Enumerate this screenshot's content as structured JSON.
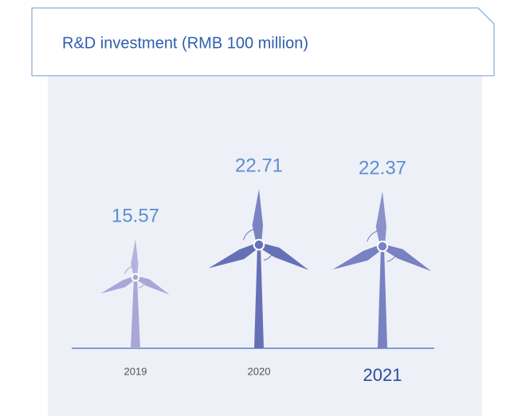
{
  "chart_data": {
    "type": "bar",
    "title": "R&D investment (RMB 100 million)",
    "categories": [
      "2019",
      "2020",
      "2021"
    ],
    "values": [
      15.57,
      22.71,
      22.37
    ],
    "colors": [
      "#a9a7d8",
      "#6670b6",
      "#7881c1"
    ]
  }
}
